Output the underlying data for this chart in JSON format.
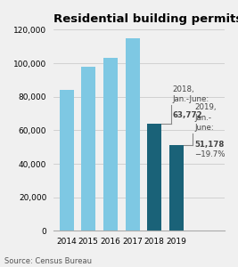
{
  "title": "Residential building permits statewide",
  "categories": [
    "2014",
    "2015",
    "2016",
    "2017",
    "2018",
    "2019"
  ],
  "values": [
    84000,
    98000,
    103000,
    115000,
    63772,
    51178
  ],
  "bar_colors": [
    "#7ec8e3",
    "#7ec8e3",
    "#7ec8e3",
    "#7ec8e3",
    "#1a6278",
    "#1a6278"
  ],
  "ylim": [
    0,
    120000
  ],
  "yticks": [
    0,
    20000,
    40000,
    60000,
    80000,
    100000,
    120000
  ],
  "ytick_labels": [
    "0",
    "20,000",
    "40,000",
    "60,000",
    "80,000",
    "100,000",
    "120,000"
  ],
  "source": "Source: Census Bureau",
  "background_color": "#f0f0f0",
  "grid_color": "#cccccc",
  "title_fontsize": 9.5,
  "tick_fontsize": 6.5,
  "source_fontsize": 6,
  "ann_color": "#444444",
  "ann_line_color": "#888888"
}
